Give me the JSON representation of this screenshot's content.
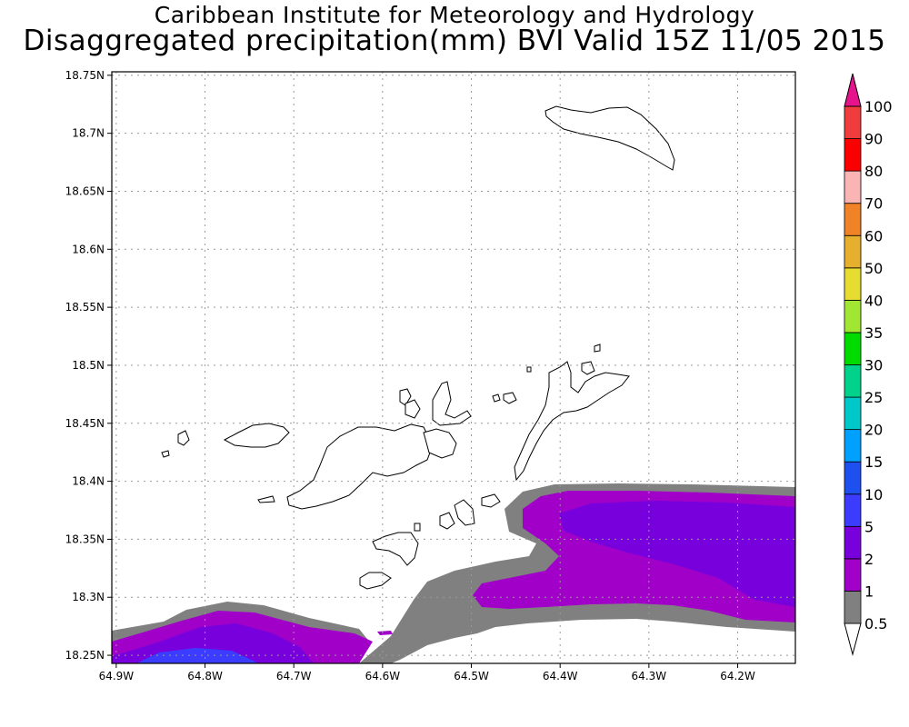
{
  "header": {
    "institute": "Caribbean Institute for Meteorology and Hydrology",
    "product": "Disaggregated precipitation(mm) BVI Valid 15Z 11/05 2015"
  },
  "map": {
    "lon_range": [
      -64.905,
      -64.135
    ],
    "lat_range": [
      18.243,
      18.753
    ],
    "lon_ticks": [
      -64.9,
      -64.8,
      -64.7,
      -64.6,
      -64.5,
      -64.4,
      -64.3,
      -64.2
    ],
    "lon_tick_labels": [
      "64.9W",
      "64.8W",
      "64.7W",
      "64.6W",
      "64.5W",
      "64.4W",
      "64.3W",
      "64.2W"
    ],
    "lat_ticks": [
      18.25,
      18.3,
      18.35,
      18.4,
      18.45,
      18.5,
      18.55,
      18.6,
      18.65,
      18.7,
      18.75
    ],
    "lat_tick_labels": [
      "18.25N",
      "18.3N",
      "18.35N",
      "18.4N",
      "18.45N",
      "18.5N",
      "18.55N",
      "18.6N",
      "18.65N",
      "18.7N",
      "18.75N"
    ],
    "grid": "dotted",
    "land_fill": "#ffffff",
    "land_outline": "#000000"
  },
  "colorbar": {
    "labels": [
      "0.5",
      "1",
      "2",
      "5",
      "10",
      "15",
      "20",
      "25",
      "30",
      "35",
      "40",
      "50",
      "60",
      "70",
      "80",
      "90",
      "100"
    ],
    "colors": [
      "#ffffff",
      "#808080",
      "#a000c8",
      "#7800dc",
      "#3c3cff",
      "#1e50f0",
      "#00a0ff",
      "#00c8c8",
      "#00d28c",
      "#00dc00",
      "#a0e632",
      "#e6dc32",
      "#e6af2d",
      "#f08228",
      "#fab4b4",
      "#fa0000",
      "#f03c3c",
      "#e6148c"
    ]
  }
}
